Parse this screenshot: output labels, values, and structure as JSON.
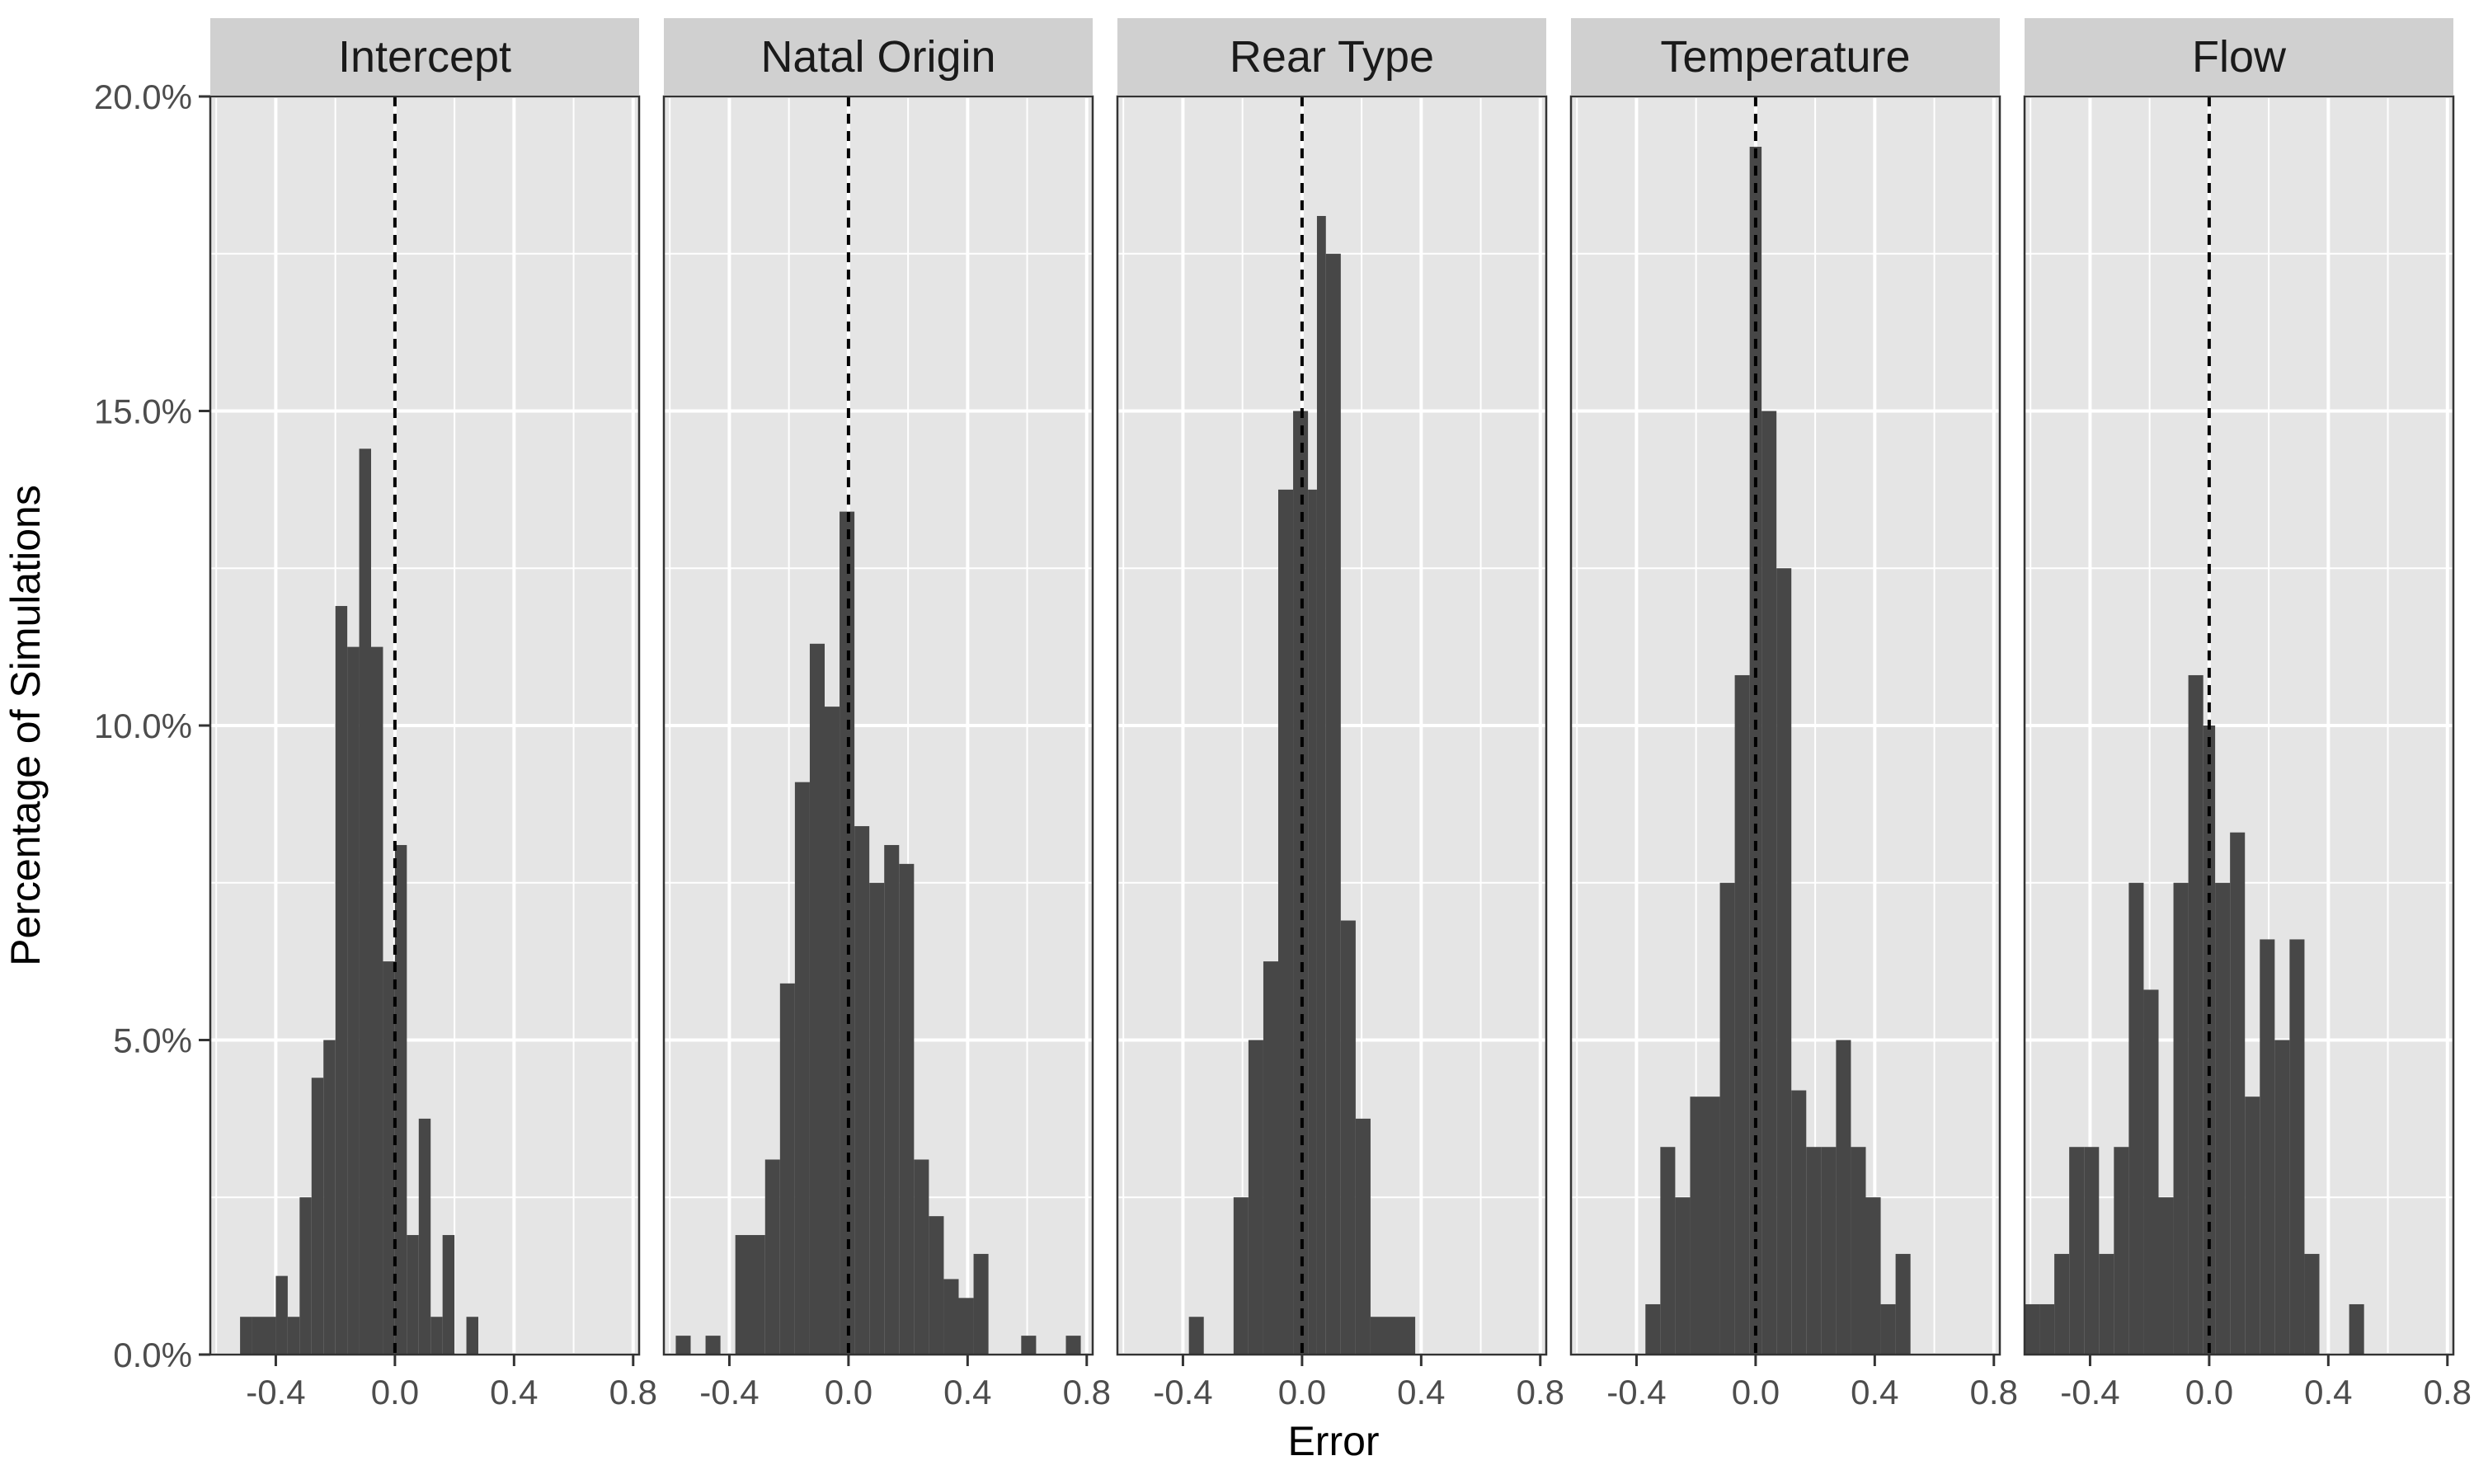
{
  "chart_data": {
    "type": "bar",
    "subtype": "faceted-histogram",
    "xlabel": "Error",
    "ylabel": "Percentage of Simulations",
    "xlim": [
      -0.62,
      0.82
    ],
    "ylim": [
      0,
      20
    ],
    "x_ticks": [
      -0.4,
      0.0,
      0.4,
      0.8
    ],
    "x_tick_labels": [
      "-0.4",
      "0.0",
      "0.4",
      "0.8"
    ],
    "y_ticks": [
      0,
      5,
      10,
      15,
      20
    ],
    "y_tick_labels": [
      "0.0%",
      "5.0%",
      "10.0%",
      "15.0%",
      "20.0%"
    ],
    "reference_line_x": 0,
    "bin_width": 0.04,
    "colors": {
      "bar": "#474747",
      "panel_background": "#e5e5e5",
      "grid": "#ffffff",
      "strip": "#d0d0d0",
      "reference_line": "#000000"
    },
    "panels": [
      {
        "title": "Intercept",
        "bins": [
          {
            "x0": -0.52,
            "x1": -0.48,
            "y": 0.6
          },
          {
            "x0": -0.48,
            "x1": -0.44,
            "y": 0.6
          },
          {
            "x0": -0.44,
            "x1": -0.4,
            "y": 0.6
          },
          {
            "x0": -0.4,
            "x1": -0.36,
            "y": 1.25
          },
          {
            "x0": -0.36,
            "x1": -0.32,
            "y": 0.6
          },
          {
            "x0": -0.32,
            "x1": -0.28,
            "y": 2.5
          },
          {
            "x0": -0.28,
            "x1": -0.24,
            "y": 4.4
          },
          {
            "x0": -0.24,
            "x1": -0.2,
            "y": 5.0
          },
          {
            "x0": -0.2,
            "x1": -0.16,
            "y": 11.9
          },
          {
            "x0": -0.16,
            "x1": -0.12,
            "y": 11.25
          },
          {
            "x0": -0.12,
            "x1": -0.08,
            "y": 14.4
          },
          {
            "x0": -0.08,
            "x1": -0.04,
            "y": 11.25
          },
          {
            "x0": -0.04,
            "x1": 0.0,
            "y": 6.25
          },
          {
            "x0": 0.0,
            "x1": 0.04,
            "y": 8.1
          },
          {
            "x0": 0.04,
            "x1": 0.08,
            "y": 1.9
          },
          {
            "x0": 0.08,
            "x1": 0.12,
            "y": 3.75
          },
          {
            "x0": 0.12,
            "x1": 0.16,
            "y": 0.6
          },
          {
            "x0": 0.16,
            "x1": 0.2,
            "y": 1.9
          },
          {
            "x0": 0.2,
            "x1": 0.24,
            "y": 0.0
          },
          {
            "x0": 0.24,
            "x1": 0.28,
            "y": 0.6
          }
        ]
      },
      {
        "title": "Natal Origin",
        "bins": [
          {
            "x0": -0.58,
            "x1": -0.53,
            "y": 0.3
          },
          {
            "x0": -0.53,
            "x1": -0.48,
            "y": 0.0
          },
          {
            "x0": -0.48,
            "x1": -0.43,
            "y": 0.3
          },
          {
            "x0": -0.43,
            "x1": -0.38,
            "y": 0.0
          },
          {
            "x0": -0.38,
            "x1": -0.28,
            "y": 1.9
          },
          {
            "x0": -0.28,
            "x1": -0.23,
            "y": 3.1
          },
          {
            "x0": -0.23,
            "x1": -0.18,
            "y": 5.9
          },
          {
            "x0": -0.18,
            "x1": -0.13,
            "y": 9.1
          },
          {
            "x0": -0.13,
            "x1": -0.08,
            "y": 11.3
          },
          {
            "x0": -0.08,
            "x1": -0.03,
            "y": 10.3
          },
          {
            "x0": -0.03,
            "x1": 0.02,
            "y": 13.4
          },
          {
            "x0": 0.02,
            "x1": 0.07,
            "y": 8.4
          },
          {
            "x0": 0.07,
            "x1": 0.12,
            "y": 7.5
          },
          {
            "x0": 0.12,
            "x1": 0.17,
            "y": 8.1
          },
          {
            "x0": 0.17,
            "x1": 0.22,
            "y": 7.8
          },
          {
            "x0": 0.22,
            "x1": 0.27,
            "y": 3.1
          },
          {
            "x0": 0.27,
            "x1": 0.32,
            "y": 2.2
          },
          {
            "x0": 0.32,
            "x1": 0.37,
            "y": 1.2
          },
          {
            "x0": 0.37,
            "x1": 0.42,
            "y": 0.9
          },
          {
            "x0": 0.42,
            "x1": 0.47,
            "y": 1.6
          },
          {
            "x0": 0.47,
            "x1": 0.58,
            "y": 0.0
          },
          {
            "x0": 0.58,
            "x1": 0.63,
            "y": 0.3
          },
          {
            "x0": 0.63,
            "x1": 0.73,
            "y": 0.0
          },
          {
            "x0": 0.73,
            "x1": 0.78,
            "y": 0.3
          }
        ]
      },
      {
        "title": "Rear Type",
        "bins": [
          {
            "x0": -0.38,
            "x1": -0.33,
            "y": 0.6
          },
          {
            "x0": -0.33,
            "x1": -0.23,
            "y": 0.0
          },
          {
            "x0": -0.23,
            "x1": -0.18,
            "y": 2.5
          },
          {
            "x0": -0.18,
            "x1": -0.13,
            "y": 5.0
          },
          {
            "x0": -0.13,
            "x1": -0.08,
            "y": 6.25
          },
          {
            "x0": -0.08,
            "x1": -0.03,
            "y": 13.75
          },
          {
            "x0": -0.03,
            "x1": 0.02,
            "y": 15.0
          },
          {
            "x0": 0.02,
            "x1": 0.05,
            "y": 13.75
          },
          {
            "x0": 0.05,
            "x1": 0.08,
            "y": 18.1
          },
          {
            "x0": 0.08,
            "x1": 0.13,
            "y": 17.5
          },
          {
            "x0": 0.13,
            "x1": 0.18,
            "y": 6.9
          },
          {
            "x0": 0.18,
            "x1": 0.23,
            "y": 3.75
          },
          {
            "x0": 0.23,
            "x1": 0.38,
            "y": 0.6
          }
        ]
      },
      {
        "title": "Temperature",
        "bins": [
          {
            "x0": -0.37,
            "x1": -0.32,
            "y": 0.8
          },
          {
            "x0": -0.32,
            "x1": -0.27,
            "y": 3.3
          },
          {
            "x0": -0.27,
            "x1": -0.22,
            "y": 2.5
          },
          {
            "x0": -0.22,
            "x1": -0.17,
            "y": 4.1
          },
          {
            "x0": -0.17,
            "x1": -0.12,
            "y": 4.1
          },
          {
            "x0": -0.12,
            "x1": -0.07,
            "y": 7.5
          },
          {
            "x0": -0.07,
            "x1": -0.02,
            "y": 10.8
          },
          {
            "x0": -0.02,
            "x1": 0.02,
            "y": 19.2
          },
          {
            "x0": 0.02,
            "x1": 0.07,
            "y": 15.0
          },
          {
            "x0": 0.07,
            "x1": 0.12,
            "y": 12.5
          },
          {
            "x0": 0.12,
            "x1": 0.17,
            "y": 4.2
          },
          {
            "x0": 0.17,
            "x1": 0.22,
            "y": 3.3
          },
          {
            "x0": 0.22,
            "x1": 0.27,
            "y": 3.3
          },
          {
            "x0": 0.27,
            "x1": 0.32,
            "y": 5.0
          },
          {
            "x0": 0.32,
            "x1": 0.37,
            "y": 3.3
          },
          {
            "x0": 0.37,
            "x1": 0.42,
            "y": 2.5
          },
          {
            "x0": 0.42,
            "x1": 0.47,
            "y": 0.8
          },
          {
            "x0": 0.47,
            "x1": 0.52,
            "y": 1.6
          }
        ]
      },
      {
        "title": "Flow",
        "bins": [
          {
            "x0": -0.62,
            "x1": -0.57,
            "y": 0.8
          },
          {
            "x0": -0.57,
            "x1": -0.52,
            "y": 0.8
          },
          {
            "x0": -0.52,
            "x1": -0.47,
            "y": 1.6
          },
          {
            "x0": -0.47,
            "x1": -0.42,
            "y": 3.3
          },
          {
            "x0": -0.42,
            "x1": -0.37,
            "y": 3.3
          },
          {
            "x0": -0.37,
            "x1": -0.32,
            "y": 1.6
          },
          {
            "x0": -0.32,
            "x1": -0.27,
            "y": 3.3
          },
          {
            "x0": -0.27,
            "x1": -0.22,
            "y": 7.5
          },
          {
            "x0": -0.22,
            "x1": -0.17,
            "y": 5.8
          },
          {
            "x0": -0.17,
            "x1": -0.12,
            "y": 2.5
          },
          {
            "x0": -0.12,
            "x1": -0.07,
            "y": 7.5
          },
          {
            "x0": -0.07,
            "x1": -0.02,
            "y": 10.8
          },
          {
            "x0": -0.02,
            "x1": 0.02,
            "y": 10.0
          },
          {
            "x0": 0.02,
            "x1": 0.07,
            "y": 7.5
          },
          {
            "x0": 0.07,
            "x1": 0.12,
            "y": 8.3
          },
          {
            "x0": 0.12,
            "x1": 0.17,
            "y": 4.1
          },
          {
            "x0": 0.17,
            "x1": 0.22,
            "y": 6.6
          },
          {
            "x0": 0.22,
            "x1": 0.27,
            "y": 5.0
          },
          {
            "x0": 0.27,
            "x1": 0.32,
            "y": 6.6
          },
          {
            "x0": 0.32,
            "x1": 0.37,
            "y": 1.6
          },
          {
            "x0": 0.37,
            "x1": 0.47,
            "y": 0.0
          },
          {
            "x0": 0.47,
            "x1": 0.52,
            "y": 0.8
          }
        ]
      }
    ]
  }
}
